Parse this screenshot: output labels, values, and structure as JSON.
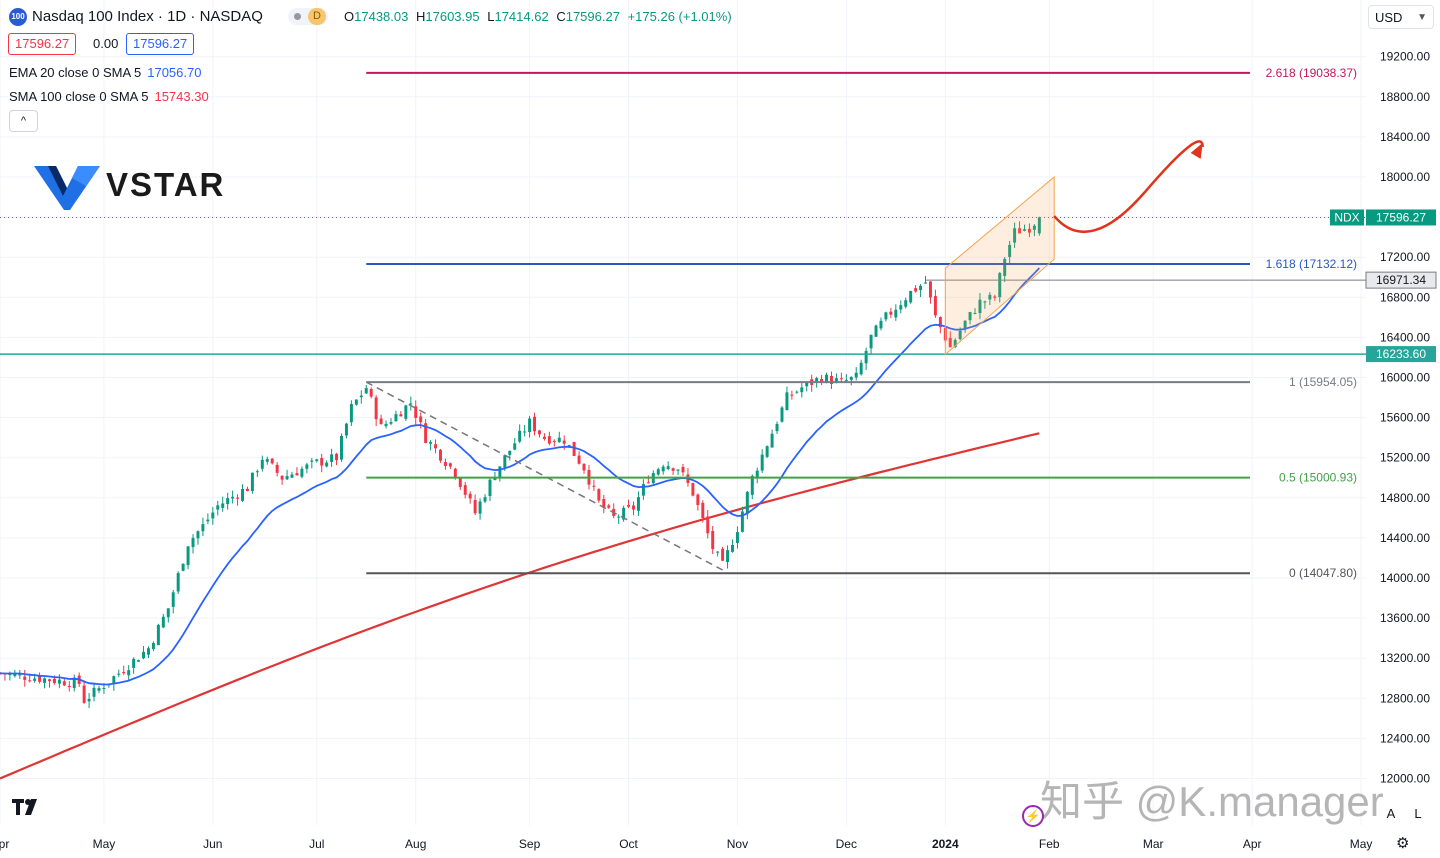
{
  "header": {
    "symbol_icon": "100",
    "title": "Nasdaq 100 Index · 1D · NASDAQ",
    "badge_label": "D",
    "open_label": "O",
    "open": "17438.03",
    "high_label": "H",
    "high": "17603.95",
    "low_label": "L",
    "low": "17414.62",
    "close_label": "C",
    "close": "17596.27",
    "change": "+175.26 (+1.01%)",
    "sell_price": "17596.27",
    "spread": "0.00",
    "buy_price": "17596.27"
  },
  "indicators": {
    "ema_label": "EMA 20 close 0 SMA 5",
    "ema_value": "17056.70",
    "sma_label": "SMA 100 close 0 SMA 5",
    "sma_value": "15743.30",
    "collapse_glyph": "^"
  },
  "logo": {
    "text": "VSTAR"
  },
  "currency": {
    "label": "USD"
  },
  "watermark": "知乎 @K.manager",
  "controls": {
    "auto": "A",
    "log": "L"
  },
  "colors": {
    "up": "#089981",
    "down": "#f23645",
    "ema": "#2962ff",
    "sma": "#e03535",
    "fib_2618": "#c2185b",
    "fib_1618": "#2a56c6",
    "fib_1": "#787b86",
    "fib_05": "#43a047",
    "fib_0": "#555555",
    "support": "#26a69a",
    "arrow": "#e0341c",
    "channel": "#f5a34e"
  },
  "chart_data": {
    "type": "candlestick",
    "title": "Nasdaq 100 Index · 1D · NASDAQ",
    "ylim": [
      11900,
      19400
    ],
    "y_ticks": [
      12000,
      12400,
      12800,
      13200,
      13600,
      14000,
      14400,
      14800,
      15200,
      15600,
      16000,
      16400,
      16800,
      17200,
      17600,
      18000,
      18400,
      18800,
      19200
    ],
    "y_tick_labels": [
      "12000.00",
      "12400.00",
      "12800.00",
      "13200.00",
      "13600.00",
      "14000.00",
      "14400.00",
      "14800.00",
      "15200.00",
      "15600.00",
      "16000.00",
      "16400.00",
      "16800.00",
      "17200.00",
      "17600.00",
      "18000.00",
      "18400.00",
      "18800.00",
      "19200.00"
    ],
    "x_months": [
      {
        "label": "Apr",
        "day": 0
      },
      {
        "label": "May",
        "day": 21
      },
      {
        "label": "Jun",
        "day": 43
      },
      {
        "label": "Jul",
        "day": 64
      },
      {
        "label": "Aug",
        "day": 84
      },
      {
        "label": "Sep",
        "day": 107
      },
      {
        "label": "Oct",
        "day": 127
      },
      {
        "label": "Nov",
        "day": 149
      },
      {
        "label": "Dec",
        "day": 171
      },
      {
        "label": "2024",
        "day": 191
      },
      {
        "label": "Feb",
        "day": 212
      },
      {
        "label": "Mar",
        "day": 233
      },
      {
        "label": "Apr",
        "day": 253
      },
      {
        "label": "May",
        "day": 275
      }
    ],
    "x_range_days": [
      0,
      276
    ],
    "anchors": [
      {
        "day": 0,
        "price": 13050
      },
      {
        "day": 8,
        "price": 13000
      },
      {
        "day": 16,
        "price": 12950
      },
      {
        "day": 17,
        "price": 12780
      },
      {
        "day": 24,
        "price": 13050
      },
      {
        "day": 30,
        "price": 13300
      },
      {
        "day": 34,
        "price": 13700
      },
      {
        "day": 38,
        "price": 14350
      },
      {
        "day": 41,
        "price": 14520
      },
      {
        "day": 44,
        "price": 14720
      },
      {
        "day": 50,
        "price": 14900
      },
      {
        "day": 53,
        "price": 15200
      },
      {
        "day": 57,
        "price": 15000
      },
      {
        "day": 64,
        "price": 15150
      },
      {
        "day": 68,
        "price": 15200
      },
      {
        "day": 71,
        "price": 15700
      },
      {
        "day": 74,
        "price": 15900
      },
      {
        "day": 77,
        "price": 15500
      },
      {
        "day": 83,
        "price": 15750
      },
      {
        "day": 86,
        "price": 15400
      },
      {
        "day": 92,
        "price": 15050
      },
      {
        "day": 96,
        "price": 14650
      },
      {
        "day": 100,
        "price": 15050
      },
      {
        "day": 104,
        "price": 15350
      },
      {
        "day": 107,
        "price": 15550
      },
      {
        "day": 110,
        "price": 15400
      },
      {
        "day": 114,
        "price": 15380
      },
      {
        "day": 118,
        "price": 15100
      },
      {
        "day": 121,
        "price": 14750
      },
      {
        "day": 124,
        "price": 14600
      },
      {
        "day": 128,
        "price": 14700
      },
      {
        "day": 131,
        "price": 15000
      },
      {
        "day": 134,
        "price": 15150
      },
      {
        "day": 137,
        "price": 15100
      },
      {
        "day": 140,
        "price": 14850
      },
      {
        "day": 144,
        "price": 14300
      },
      {
        "day": 146,
        "price": 14120
      },
      {
        "day": 149,
        "price": 14500
      },
      {
        "day": 152,
        "price": 15000
      },
      {
        "day": 156,
        "price": 15450
      },
      {
        "day": 159,
        "price": 15800
      },
      {
        "day": 162,
        "price": 15900
      },
      {
        "day": 166,
        "price": 16000
      },
      {
        "day": 170,
        "price": 15950
      },
      {
        "day": 173,
        "price": 16000
      },
      {
        "day": 176,
        "price": 16400
      },
      {
        "day": 179,
        "price": 16600
      },
      {
        "day": 184,
        "price": 16850
      },
      {
        "day": 187,
        "price": 16950
      },
      {
        "day": 189,
        "price": 16600
      },
      {
        "day": 192,
        "price": 16300
      },
      {
        "day": 195,
        "price": 16550
      },
      {
        "day": 198,
        "price": 16750
      },
      {
        "day": 201,
        "price": 16800
      },
      {
        "day": 203,
        "price": 17200
      },
      {
        "day": 205,
        "price": 17450
      },
      {
        "day": 208,
        "price": 17500
      },
      {
        "day": 210,
        "price": 17596.27
      }
    ],
    "ema20": {
      "name": "EMA 20",
      "last": 17056.7
    },
    "sma100": {
      "name": "SMA 100",
      "last": 15743.3,
      "start": 12000
    },
    "fib_levels": [
      {
        "ratio": "2.618",
        "price": 19038.37,
        "label": "2.618 (19038.37)"
      },
      {
        "ratio": "1.618",
        "price": 17132.12,
        "label": "1.618 (17132.12)"
      },
      {
        "ratio": "1",
        "price": 15954.05,
        "label": "1 (15954.05)"
      },
      {
        "ratio": "0.5",
        "price": 15000.93,
        "label": "0.5 (15000.93)"
      },
      {
        "ratio": "0",
        "price": 14047.8,
        "label": "0 (14047.80)"
      }
    ],
    "fib_start_day": 74,
    "price_labels": [
      {
        "name": "NDX",
        "price": 17596.27,
        "label": "17596.27"
      },
      {
        "name": "level",
        "price": 16971.34,
        "label": "16971.34"
      },
      {
        "name": "support",
        "price": 16233.6,
        "label": "16233.60"
      }
    ],
    "downtrend_line": {
      "from": {
        "day": 74,
        "price": 15954
      },
      "to": {
        "day": 146,
        "price": 14080
      }
    },
    "channel": {
      "lower": [
        {
          "day": 191,
          "price": 16230
        },
        {
          "day": 213,
          "price": 17180
        }
      ],
      "upper": [
        {
          "day": 191,
          "price": 17090
        },
        {
          "day": 213,
          "price": 18000
        }
      ]
    },
    "projection_arrow": {
      "from": {
        "day": 213,
        "price": 17610
      },
      "via": {
        "day": 220,
        "price": 17420
      },
      "to": {
        "day": 243,
        "price": 18300
      }
    }
  }
}
